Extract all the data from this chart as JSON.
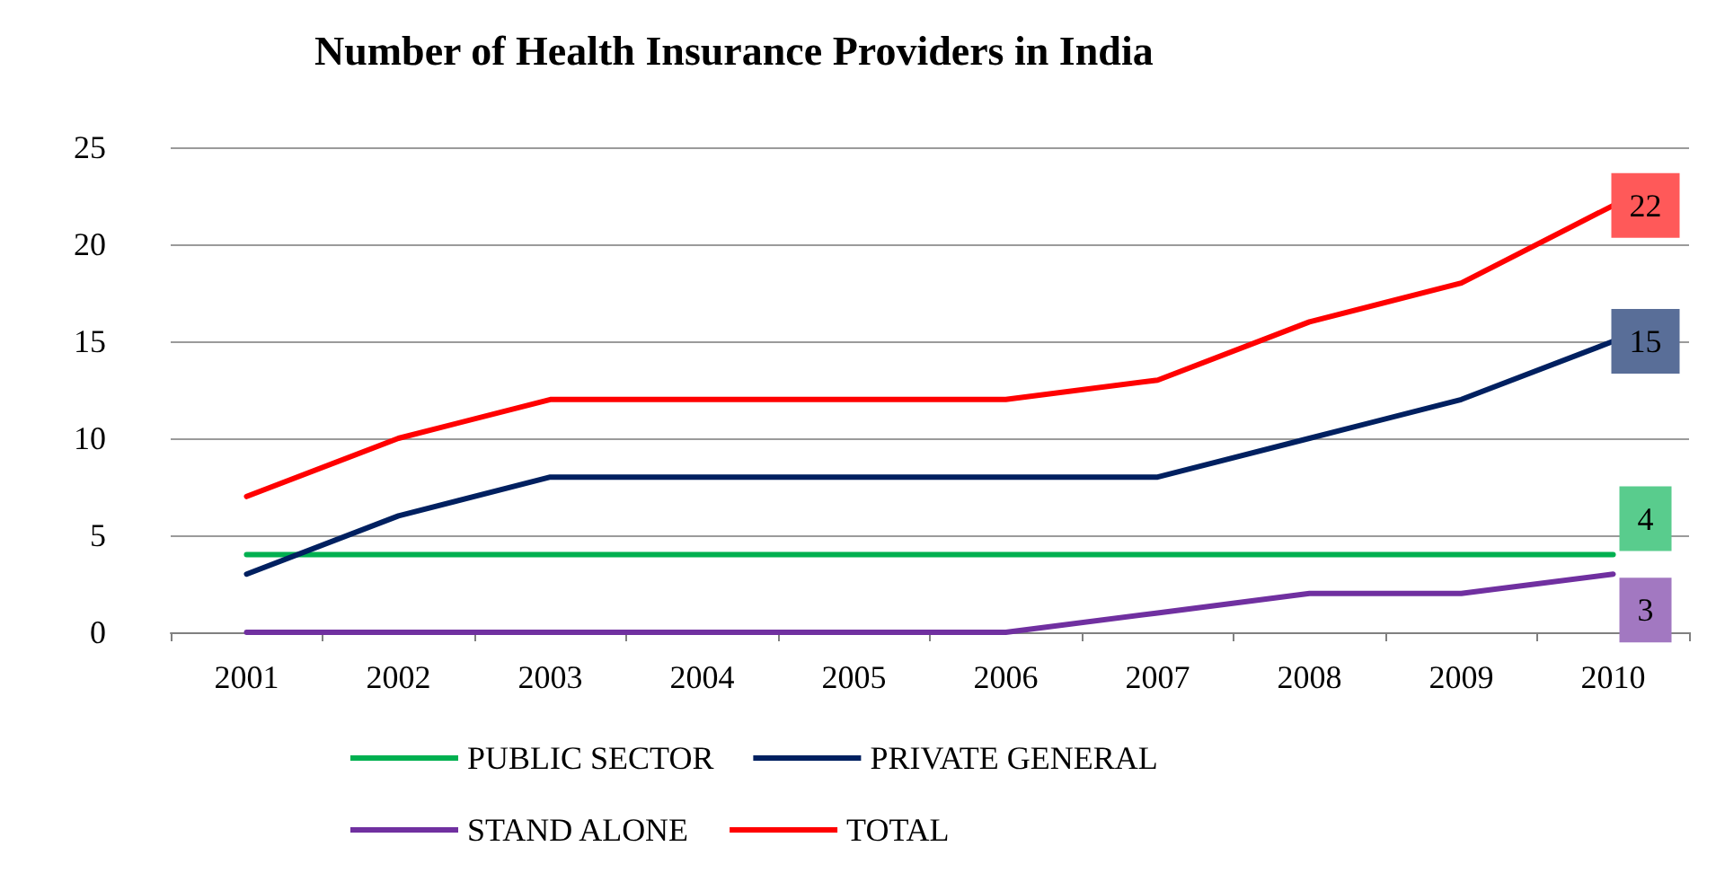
{
  "chart_data": {
    "type": "line",
    "title": "Number of Health Insurance Providers in India",
    "categories": [
      "2001",
      "2002",
      "2003",
      "2004",
      "2005",
      "2006",
      "2007",
      "2008",
      "2009",
      "2010"
    ],
    "series": [
      {
        "name": "PUBLIC SECTOR",
        "color": "#00b050",
        "values": [
          4,
          4,
          4,
          4,
          4,
          4,
          4,
          4,
          4,
          4
        ],
        "value_labels": [
          null,
          null,
          null,
          null,
          null,
          null,
          null,
          null,
          null,
          "4"
        ]
      },
      {
        "name": "PRIVATE GENERAL",
        "color": "#002060",
        "values": [
          3,
          6,
          8,
          8,
          8,
          8,
          8,
          10,
          12,
          15
        ],
        "value_labels": [
          null,
          null,
          null,
          null,
          null,
          null,
          null,
          null,
          null,
          "15"
        ]
      },
      {
        "name": "STAND ALONE",
        "color": "#7030a0",
        "values": [
          0,
          0,
          0,
          0,
          0,
          0,
          1,
          2,
          2,
          3
        ],
        "value_labels": [
          null,
          null,
          null,
          null,
          null,
          null,
          null,
          null,
          null,
          "3"
        ]
      },
      {
        "name": "TOTAL",
        "color": "#ff0000",
        "values": [
          7,
          10,
          12,
          12,
          12,
          12,
          13,
          16,
          18,
          22
        ],
        "value_labels": [
          null,
          null,
          null,
          null,
          null,
          null,
          null,
          null,
          null,
          "22"
        ]
      }
    ],
    "ylim": [
      0,
      25
    ],
    "yticks": [
      0,
      5,
      10,
      15,
      20,
      25
    ],
    "grid": "y",
    "legend": "bottom",
    "marker": "none",
    "line_style": "solid"
  }
}
